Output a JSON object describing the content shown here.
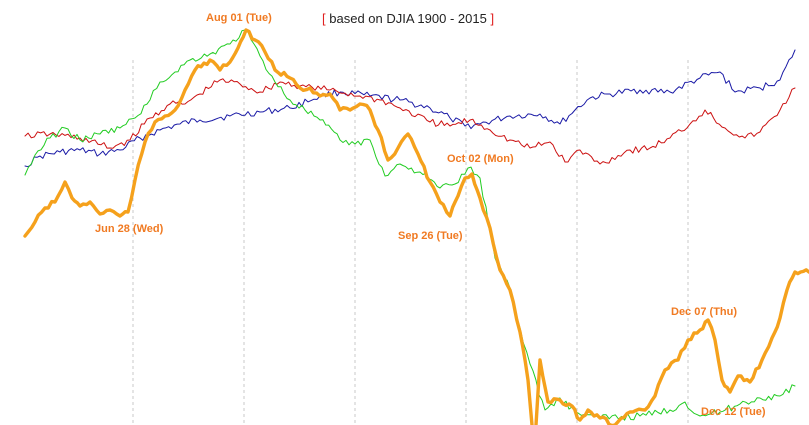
{
  "chart_data": {
    "type": "line",
    "subtitle": "based on DJIA 1900 - 2015",
    "subtitle_bracket_open": "[",
    "subtitle_bracket_close": "]",
    "grid": "vertical dashed gridlines only",
    "annotations": [
      {
        "label": "Aug 01 (Tue)"
      },
      {
        "label": "Jun 28 (Wed)"
      },
      {
        "label": "Oct 02 (Mon)"
      },
      {
        "label": "Sep 26 (Tue)"
      },
      {
        "label": "Dec 07 (Thu)"
      },
      {
        "label": "Dec 12 (Tue)"
      }
    ],
    "series": [
      {
        "color": "#1a1aa6",
        "stroke": 1,
        "points": [
          [
            25,
            166
          ],
          [
            40,
            156
          ],
          [
            60,
            152
          ],
          [
            80,
            150
          ],
          [
            100,
            154
          ],
          [
            120,
            150
          ],
          [
            140,
            138
          ],
          [
            160,
            130
          ],
          [
            180,
            124
          ],
          [
            200,
            120
          ],
          [
            230,
            116
          ],
          [
            260,
            112
          ],
          [
            290,
            108
          ],
          [
            320,
            96
          ],
          [
            340,
            92
          ],
          [
            370,
            96
          ],
          [
            400,
            100
          ],
          [
            430,
            108
          ],
          [
            450,
            118
          ],
          [
            465,
            126
          ],
          [
            480,
            124
          ],
          [
            510,
            116
          ],
          [
            540,
            114
          ],
          [
            560,
            124
          ],
          [
            575,
            110
          ],
          [
            590,
            98
          ],
          [
            610,
            94
          ],
          [
            640,
            90
          ],
          [
            670,
            92
          ],
          [
            700,
            78
          ],
          [
            720,
            72
          ],
          [
            735,
            92
          ],
          [
            760,
            88
          ],
          [
            780,
            80
          ],
          [
            795,
            50
          ]
        ]
      },
      {
        "color": "#cc1111",
        "stroke": 1,
        "points": [
          [
            25,
            136
          ],
          [
            50,
            134
          ],
          [
            80,
            138
          ],
          [
            110,
            148
          ],
          [
            130,
            140
          ],
          [
            150,
            118
          ],
          [
            170,
            104
          ],
          [
            185,
            104
          ],
          [
            200,
            94
          ],
          [
            220,
            80
          ],
          [
            240,
            84
          ],
          [
            260,
            92
          ],
          [
            280,
            82
          ],
          [
            300,
            86
          ],
          [
            330,
            90
          ],
          [
            360,
            96
          ],
          [
            380,
            100
          ],
          [
            400,
            108
          ],
          [
            430,
            122
          ],
          [
            450,
            126
          ],
          [
            470,
            120
          ],
          [
            490,
            130
          ],
          [
            510,
            140
          ],
          [
            530,
            148
          ],
          [
            550,
            142
          ],
          [
            565,
            162
          ],
          [
            580,
            150
          ],
          [
            600,
            164
          ],
          [
            630,
            150
          ],
          [
            650,
            148
          ],
          [
            670,
            138
          ],
          [
            690,
            124
          ],
          [
            705,
            110
          ],
          [
            725,
            128
          ],
          [
            745,
            138
          ],
          [
            760,
            132
          ],
          [
            780,
            110
          ],
          [
            795,
            88
          ]
        ]
      },
      {
        "color": "#22cc22",
        "stroke": 1,
        "points": [
          [
            25,
            175
          ],
          [
            35,
            155
          ],
          [
            50,
            138
          ],
          [
            65,
            128
          ],
          [
            80,
            140
          ],
          [
            100,
            134
          ],
          [
            120,
            128
          ],
          [
            135,
            118
          ],
          [
            150,
            100
          ],
          [
            160,
            82
          ],
          [
            175,
            72
          ],
          [
            190,
            60
          ],
          [
            210,
            54
          ],
          [
            230,
            44
          ],
          [
            245,
            30
          ],
          [
            260,
            56
          ],
          [
            275,
            82
          ],
          [
            290,
            100
          ],
          [
            305,
            110
          ],
          [
            320,
            120
          ],
          [
            340,
            140
          ],
          [
            355,
            144
          ],
          [
            370,
            140
          ],
          [
            385,
            176
          ],
          [
            400,
            164
          ],
          [
            420,
            172
          ],
          [
            440,
            188
          ],
          [
            455,
            184
          ],
          [
            468,
            168
          ],
          [
            480,
            178
          ],
          [
            495,
            258
          ],
          [
            510,
            288
          ],
          [
            520,
            328
          ],
          [
            530,
            364
          ],
          [
            545,
            410
          ],
          [
            560,
            398
          ],
          [
            575,
            412
          ],
          [
            600,
            418
          ],
          [
            640,
            416
          ],
          [
            670,
            410
          ],
          [
            685,
            402
          ],
          [
            700,
            416
          ],
          [
            720,
            412
          ],
          [
            740,
            404
          ],
          [
            760,
            398
          ],
          [
            780,
            396
          ],
          [
            795,
            386
          ]
        ]
      },
      {
        "color": "#f5a11c",
        "stroke": 3.4,
        "points": [
          [
            25,
            236
          ],
          [
            35,
            222
          ],
          [
            45,
            208
          ],
          [
            55,
            202
          ],
          [
            65,
            182
          ],
          [
            72,
            198
          ],
          [
            80,
            206
          ],
          [
            90,
            202
          ],
          [
            100,
            214
          ],
          [
            110,
            210
          ],
          [
            120,
            216
          ],
          [
            128,
            212
          ],
          [
            135,
            180
          ],
          [
            145,
            142
          ],
          [
            155,
            122
          ],
          [
            165,
            116
          ],
          [
            175,
            110
          ],
          [
            185,
            90
          ],
          [
            195,
            70
          ],
          [
            210,
            60
          ],
          [
            220,
            70
          ],
          [
            230,
            62
          ],
          [
            238,
            48
          ],
          [
            246,
            30
          ],
          [
            255,
            40
          ],
          [
            265,
            52
          ],
          [
            275,
            70
          ],
          [
            290,
            78
          ],
          [
            300,
            88
          ],
          [
            310,
            88
          ],
          [
            320,
            96
          ],
          [
            330,
            94
          ],
          [
            340,
            110
          ],
          [
            350,
            110
          ],
          [
            360,
            104
          ],
          [
            370,
            110
          ],
          [
            378,
            130
          ],
          [
            388,
            160
          ],
          [
            398,
            148
          ],
          [
            408,
            134
          ],
          [
            418,
            154
          ],
          [
            430,
            182
          ],
          [
            440,
            202
          ],
          [
            450,
            216
          ],
          [
            458,
            196
          ],
          [
            465,
            178
          ],
          [
            472,
            174
          ],
          [
            480,
            198
          ],
          [
            490,
            228
          ],
          [
            500,
            270
          ],
          [
            510,
            290
          ],
          [
            520,
            332
          ],
          [
            528,
            380
          ],
          [
            532,
            425
          ]
        ]
      },
      {
        "color": "#f5a11c",
        "stroke": 3.4,
        "points": [
          [
            536,
            425
          ],
          [
            540,
            360
          ],
          [
            548,
            402
          ],
          [
            560,
            400
          ],
          [
            572,
            406
          ],
          [
            580,
            420
          ],
          [
            588,
            410
          ],
          [
            600,
            418
          ],
          [
            615,
            425
          ],
          [
            630,
            412
          ],
          [
            645,
            410
          ],
          [
            655,
            396
          ],
          [
            665,
            370
          ],
          [
            678,
            360
          ],
          [
            688,
            340
          ],
          [
            700,
            330
          ],
          [
            708,
            320
          ],
          [
            715,
            340
          ],
          [
            722,
            380
          ],
          [
            730,
            392
          ],
          [
            738,
            376
          ],
          [
            750,
            382
          ],
          [
            762,
            360
          ],
          [
            772,
            338
          ],
          [
            780,
            318
          ],
          [
            787,
            290
          ],
          [
            795,
            272
          ],
          [
            809,
            272
          ]
        ]
      }
    ]
  }
}
